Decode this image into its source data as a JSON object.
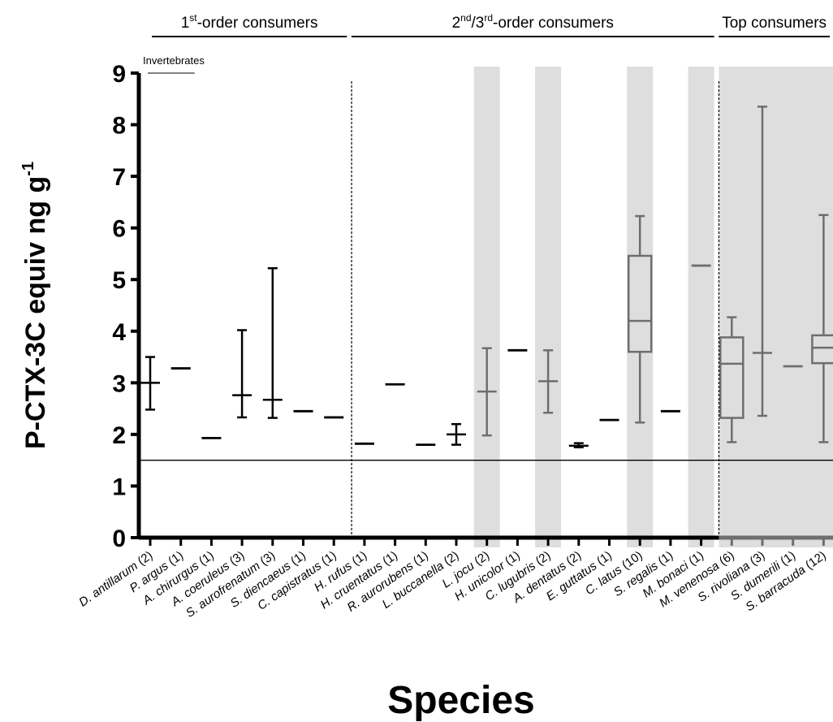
{
  "chart_data": {
    "type": "box",
    "title": "",
    "xlabel": "Species",
    "ylabel": "P-CTX-3C equiv ng g",
    "ylabel_sup": "-1",
    "ylim": [
      0,
      9
    ],
    "yticks": [
      0,
      1,
      2,
      3,
      4,
      5,
      6,
      7,
      8,
      9
    ],
    "grid": false,
    "reference_line": 1.5,
    "groups": [
      {
        "label_pre": "1",
        "label_sup1": "st",
        "label_mid": "-order consumers",
        "label_sup2": "",
        "label_post": "",
        "from": 0,
        "to": 6
      },
      {
        "label_pre": "2",
        "label_sup1": "nd",
        "label_mid": "/3",
        "label_sup2": "rd",
        "label_post": "-order consumers",
        "from": 7,
        "to": 18
      },
      {
        "label_pre": "Top consumers",
        "label_sup1": "",
        "label_mid": "",
        "label_sup2": "",
        "label_post": "",
        "from": 19,
        "to": 23
      }
    ],
    "annotation": "Invertebrates",
    "colors": {
      "first_group": "#000000",
      "shaded_series": "#6e6e6e",
      "shading": "#dedede"
    },
    "species": [
      {
        "label": "D. antillarum",
        "n": "(2)",
        "type": "range",
        "min": 2.48,
        "mid": 3.0,
        "max": 3.5,
        "shaded": false
      },
      {
        "label": "P. argus",
        "n": "(1)",
        "type": "single",
        "mid": 3.28,
        "shaded": false
      },
      {
        "label": "A. chirurgus",
        "n": "(1)",
        "type": "single",
        "mid": 1.93,
        "shaded": false
      },
      {
        "label": "A. coeruleus",
        "n": "(3)",
        "type": "range",
        "min": 2.33,
        "mid": 2.76,
        "max": 4.02,
        "shaded": false
      },
      {
        "label": "S. aurofrenatum",
        "n": "(3)",
        "type": "range",
        "min": 2.32,
        "mid": 2.67,
        "max": 5.22,
        "shaded": false
      },
      {
        "label": "S. diencaeus",
        "n": "(1)",
        "type": "single",
        "mid": 2.45,
        "shaded": false
      },
      {
        "label": "C. capistratus",
        "n": "(1)",
        "type": "single",
        "mid": 2.33,
        "shaded": false
      },
      {
        "label": "H. rufus",
        "n": "(1)",
        "type": "single",
        "mid": 1.82,
        "shaded": false
      },
      {
        "label": "H. cruentatus",
        "n": "(1)",
        "type": "single",
        "mid": 2.97,
        "shaded": false
      },
      {
        "label": "R. aurorubens",
        "n": "(1)",
        "type": "single",
        "mid": 1.8,
        "shaded": false
      },
      {
        "label": "L. buccanella",
        "n": "(2)",
        "type": "range",
        "min": 1.8,
        "mid": 2.0,
        "max": 2.2,
        "shaded": false
      },
      {
        "label": "L. jocu",
        "n": "(2)",
        "type": "range",
        "min": 1.98,
        "mid": 2.83,
        "max": 3.67,
        "shaded": true
      },
      {
        "label": "H. unicolor",
        "n": "(1)",
        "type": "single",
        "mid": 3.63,
        "shaded": false
      },
      {
        "label": "C. lugubris",
        "n": "(2)",
        "type": "range",
        "min": 2.42,
        "mid": 3.03,
        "max": 3.63,
        "shaded": true
      },
      {
        "label": "A. dentatus",
        "n": "(2)",
        "type": "range",
        "min": 1.75,
        "mid": 1.78,
        "max": 1.83,
        "shaded": false
      },
      {
        "label": "E. guttatus",
        "n": "(1)",
        "type": "single",
        "mid": 2.28,
        "shaded": false
      },
      {
        "label": "C. latus",
        "n": "(10)",
        "type": "box",
        "min": 2.23,
        "q1": 3.6,
        "median": 4.2,
        "q3": 5.46,
        "max": 6.23,
        "shaded": true
      },
      {
        "label": "S. regalis",
        "n": "(1)",
        "type": "single",
        "mid": 2.45,
        "shaded": false
      },
      {
        "label": "M. bonaci",
        "n": "(1)",
        "type": "single",
        "mid": 5.27,
        "shaded": true
      },
      {
        "label": "M. venenosa",
        "n": "(6)",
        "type": "box",
        "min": 1.85,
        "q1": 2.32,
        "median": 3.37,
        "q3": 3.88,
        "max": 4.27,
        "shaded": true
      },
      {
        "label": "S. rivoliana",
        "n": "(3)",
        "type": "range",
        "min": 2.36,
        "mid": 3.58,
        "max": 8.35,
        "shaded": true
      },
      {
        "label": "S. dumerili",
        "n": "(1)",
        "type": "single",
        "mid": 3.32,
        "shaded": true
      },
      {
        "label": "S. barracuda",
        "n": "(12)",
        "type": "box",
        "min": 1.85,
        "q1": 3.38,
        "median": 3.68,
        "q3": 3.92,
        "max": 6.25,
        "shaded": true
      }
    ]
  }
}
